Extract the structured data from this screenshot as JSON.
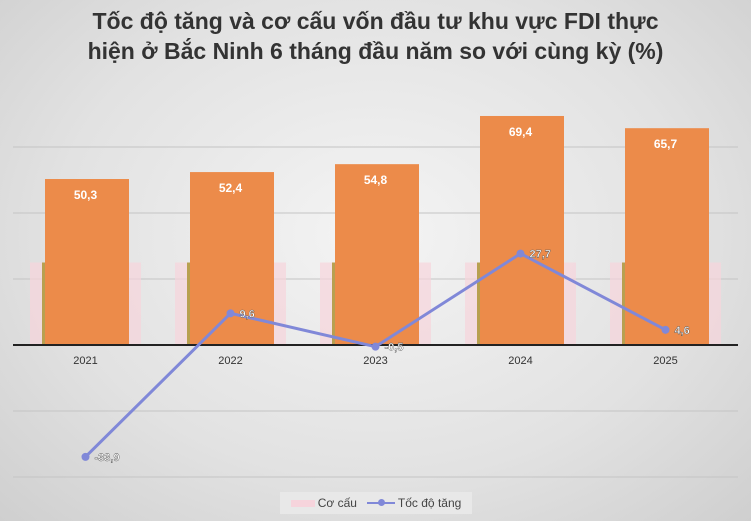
{
  "chart_data": {
    "type": "bar+line",
    "title_line1": "Tốc độ tăng và cơ cấu vốn đầu tư khu vực FDI thực",
    "title_line2": "hiện ở Bắc Ninh 6 tháng đầu năm so với cùng kỳ (%)",
    "categories": [
      "2021",
      "2022",
      "2023",
      "2024",
      "2025"
    ],
    "series": [
      {
        "name": "Cơ cấu",
        "type": "bar",
        "values": [
          50.3,
          52.4,
          54.8,
          69.4,
          65.7
        ],
        "labels": [
          "50,3",
          "52,4",
          "54,8",
          "69,4",
          "65,7"
        ],
        "color": "#ec8b4a"
      },
      {
        "name": "Tốc độ tăng",
        "type": "line",
        "values": [
          -33.9,
          9.6,
          -0.5,
          27.7,
          4.6
        ],
        "labels": [
          "-33,9",
          "9,6",
          "-0,5",
          "27,7",
          "4,6"
        ],
        "color": "#8088d8"
      }
    ],
    "ylim": [
      -40,
      80
    ],
    "grid": true,
    "legend": "bottom"
  }
}
